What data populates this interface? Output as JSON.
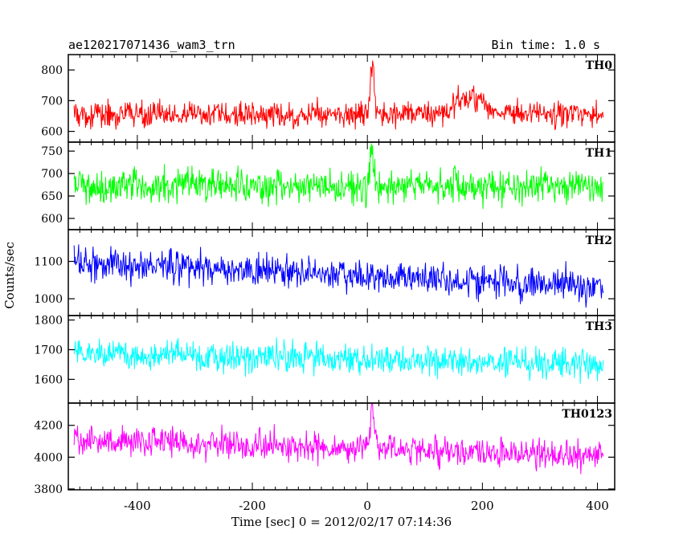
{
  "chart_data": {
    "type": "line",
    "title": "ae120217071436_wam3_trn",
    "bin_time_label": "Bin time: 1.0 s",
    "xlabel": "Time [sec] 0 = 2012/02/17 07:14:36",
    "ylabel": "Counts/sec",
    "xlim": [
      -520,
      430
    ],
    "xticks": [
      -400,
      -200,
      0,
      200,
      400
    ],
    "x_start": -510,
    "x_end": 410,
    "x_step": 1,
    "panels": [
      {
        "name": "TH0",
        "color": "#ff0000",
        "ylim": [
          565,
          850
        ],
        "yticks": [
          600,
          700,
          800
        ],
        "mean": 655,
        "noise": 38,
        "features": [
          {
            "type": "spike",
            "x": 8,
            "amplitude": 175,
            "width": 3
          },
          {
            "type": "bump",
            "x": 180,
            "amplitude": 55,
            "width": 25
          }
        ]
      },
      {
        "name": "TH1",
        "color": "#00ff00",
        "ylim": [
          575,
          770
        ],
        "yticks": [
          600,
          650,
          700,
          750
        ],
        "mean": 672,
        "noise": 34,
        "features": [
          {
            "type": "spike",
            "x": 7,
            "amplitude": 90,
            "width": 3
          }
        ]
      },
      {
        "name": "TH2",
        "color": "#0000ff",
        "ylim": [
          955,
          1185
        ],
        "yticks": [
          1000,
          1100
        ],
        "mean_start": 1098,
        "mean_end": 1030,
        "noise": 40,
        "features": []
      },
      {
        "name": "TH3",
        "color": "#00ffff",
        "ylim": [
          1520,
          1815
        ],
        "yticks": [
          1600,
          1700,
          1800
        ],
        "mean_start": 1690,
        "mean_end": 1645,
        "noise": 45,
        "features": []
      },
      {
        "name": "TH0123",
        "color": "#ff00ff",
        "ylim": [
          3795,
          4340
        ],
        "yticks": [
          3800,
          4000,
          4200
        ],
        "mean_start": 4110,
        "mean_end": 4010,
        "noise": 85,
        "features": [
          {
            "type": "spike",
            "x": 8,
            "amplitude": 270,
            "width": 3
          }
        ]
      }
    ]
  }
}
